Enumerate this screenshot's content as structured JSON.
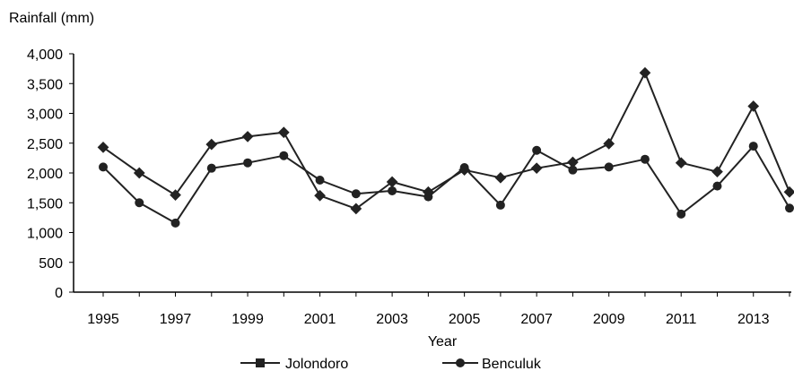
{
  "chart_data": {
    "type": "line",
    "ylabel": "Rainfall (mm)",
    "xlabel": "Year",
    "ylim": [
      0,
      4000
    ],
    "yticks": [
      0,
      500,
      1000,
      1500,
      2000,
      2500,
      3000,
      3500,
      4000
    ],
    "ytick_labels": [
      "0",
      "500",
      "1,000",
      "1,500",
      "2,000",
      "2,500",
      "3,000",
      "3,500",
      "4,000"
    ],
    "x": [
      1995,
      1996,
      1997,
      1998,
      1999,
      2000,
      2001,
      2002,
      2003,
      2004,
      2005,
      2006,
      2007,
      2008,
      2009,
      2010,
      2011,
      2012,
      2013,
      2014
    ],
    "xtick_labels": [
      "1995",
      "1997",
      "1999",
      "2001",
      "2003",
      "2005",
      "2007",
      "2009",
      "2011",
      "2013"
    ],
    "xticks": [
      1995,
      1997,
      1999,
      2001,
      2003,
      2005,
      2007,
      2009,
      2011,
      2013
    ],
    "grid": false,
    "legend_position": "bottom",
    "series": [
      {
        "name": "Jolondoro",
        "marker": "square",
        "color": "#222222",
        "values": [
          2430,
          2000,
          1630,
          2480,
          2610,
          2680,
          1620,
          1400,
          1850,
          1680,
          2050,
          1920,
          2080,
          2180,
          2490,
          3680,
          2170,
          2020,
          3120,
          1680
        ]
      },
      {
        "name": "Benculuk",
        "marker": "circle",
        "color": "#222222",
        "values": [
          2100,
          1500,
          1160,
          2080,
          2170,
          2290,
          1880,
          1650,
          1700,
          1600,
          2090,
          1460,
          2380,
          2050,
          2100,
          2230,
          1310,
          1780,
          2450,
          1410
        ]
      }
    ]
  }
}
